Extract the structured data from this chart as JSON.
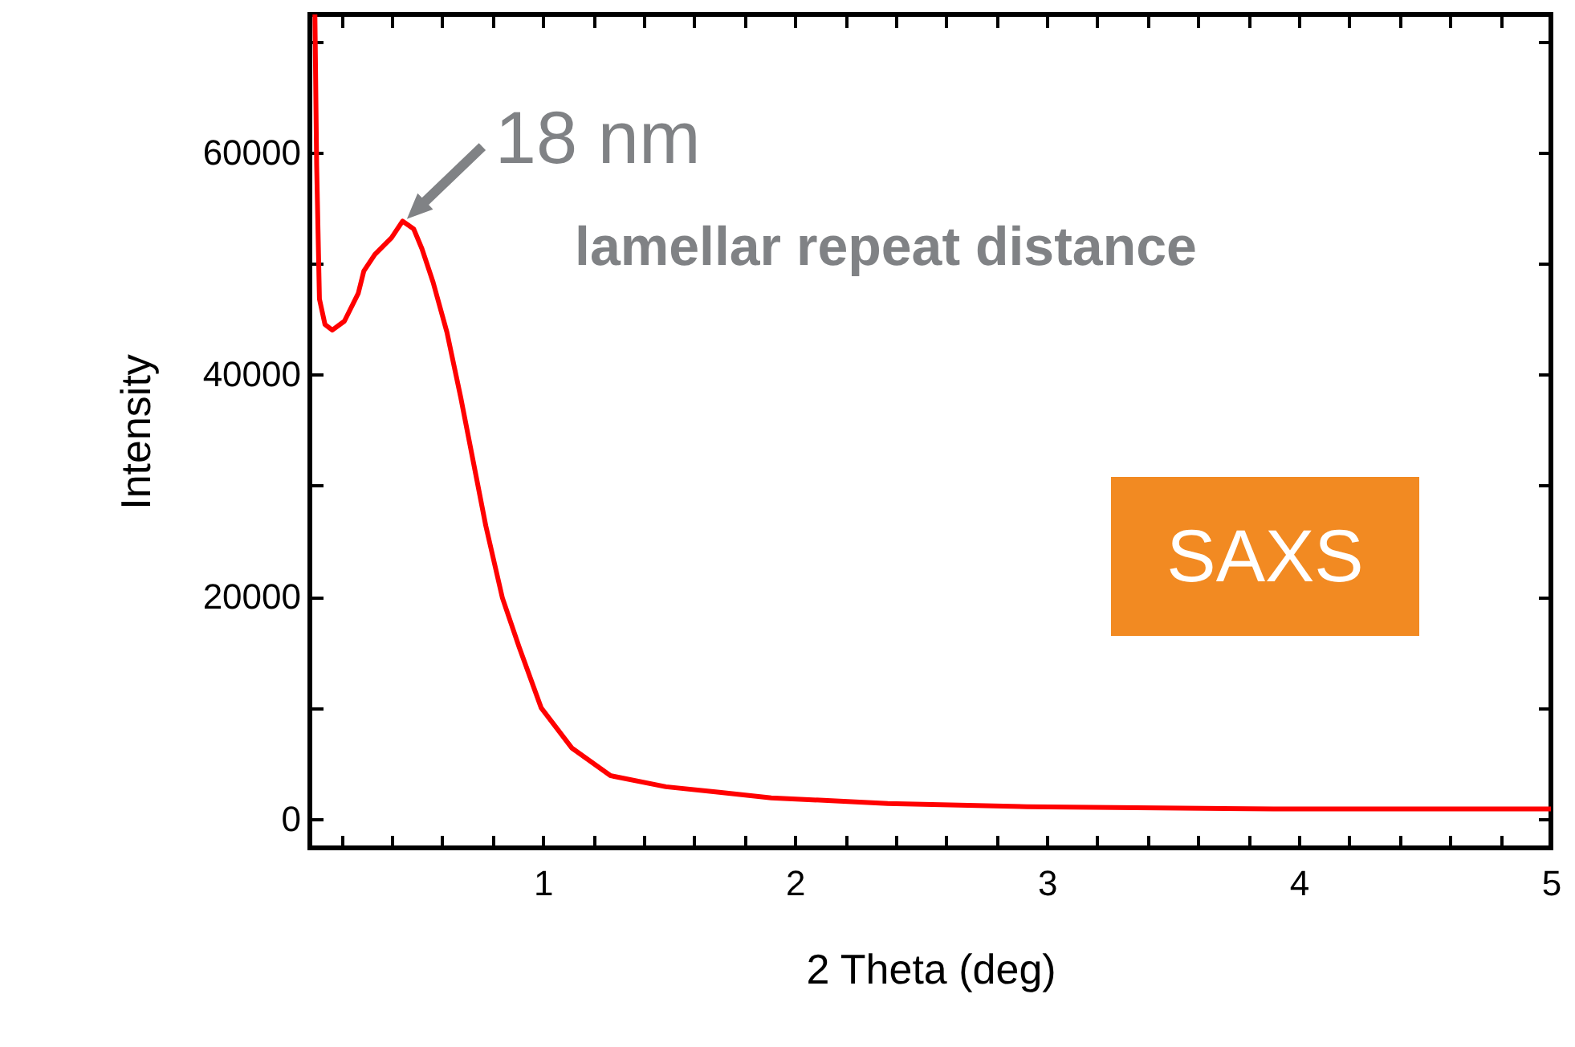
{
  "chart_data": {
    "type": "line",
    "xlabel": "2 Theta (deg)",
    "ylabel": "Intensity",
    "xlim": [
      0.075,
      5
    ],
    "ylim": [
      -2600,
      72400
    ],
    "xticks": [
      {
        "value": 0.2,
        "label": null
      },
      {
        "value": 0.4,
        "label": null
      },
      {
        "value": 0.6,
        "label": null
      },
      {
        "value": 0.8,
        "label": null
      },
      1,
      {
        "value": 1.2,
        "label": null
      },
      {
        "value": 1.4,
        "label": null
      },
      {
        "value": 1.6,
        "label": null
      },
      {
        "value": 1.8,
        "label": null
      },
      2,
      {
        "value": 2.2,
        "label": null
      },
      {
        "value": 2.4,
        "label": null
      },
      {
        "value": 2.6,
        "label": null
      },
      {
        "value": 2.8,
        "label": null
      },
      3,
      {
        "value": 3.2,
        "label": null
      },
      {
        "value": 3.4,
        "label": null
      },
      {
        "value": 3.6,
        "label": null
      },
      {
        "value": 3.8,
        "label": null
      },
      4,
      {
        "value": 4.2,
        "label": null
      },
      {
        "value": 4.4,
        "label": null
      },
      {
        "value": 4.6,
        "label": null
      },
      {
        "value": 4.8,
        "label": null
      },
      5
    ],
    "yticks": [
      0,
      {
        "value": 10000,
        "label": null
      },
      20000,
      {
        "value": 30000,
        "label": null
      },
      40000,
      {
        "value": 50000,
        "label": null
      },
      60000,
      {
        "value": 70000,
        "label": null
      }
    ],
    "grid": false,
    "marker": "none",
    "line_style": "solid",
    "series": [
      {
        "color": "#ff0000",
        "x": [
          0.095,
          0.102,
          0.113,
          0.135,
          0.164,
          0.212,
          0.267,
          0.289,
          0.333,
          0.399,
          0.443,
          0.487,
          0.52,
          0.564,
          0.619,
          0.674,
          0.718,
          0.773,
          0.839,
          0.905,
          0.993,
          1.114,
          1.268,
          1.488,
          1.7,
          1.906,
          2.368,
          2.92,
          3.9,
          5
        ],
        "values": [
          72400,
          58800,
          46800,
          44500,
          44000,
          44800,
          47300,
          49300,
          50800,
          52300,
          53800,
          53100,
          51300,
          48300,
          43800,
          37900,
          32800,
          26400,
          19900,
          15500,
          10000,
          6400,
          3900,
          2900,
          2400,
          1900,
          1400,
          1100,
          900,
          900
        ]
      }
    ],
    "annotations": [
      {
        "text": "18 nm",
        "x": 0.46,
        "y": 54000
      },
      "lamellar repeat distance",
      "SAXS"
    ]
  }
}
